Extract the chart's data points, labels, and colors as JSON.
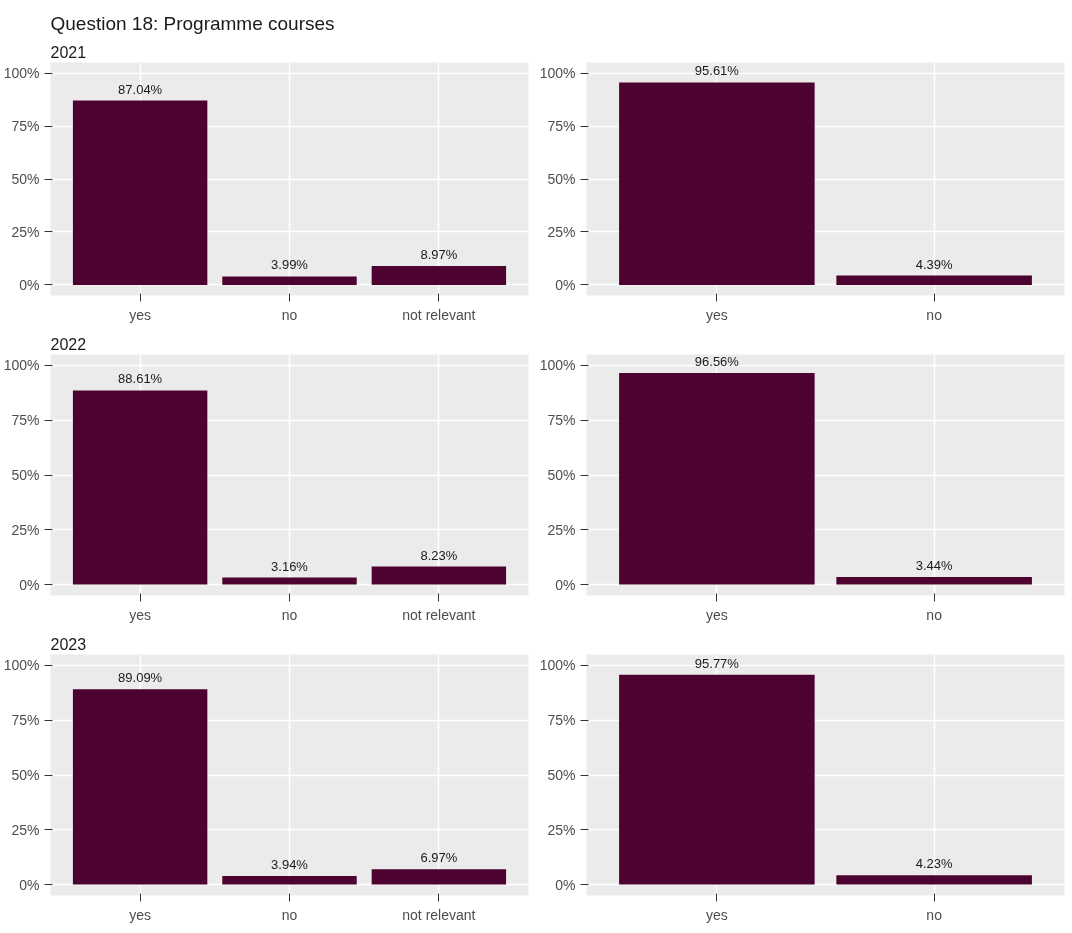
{
  "chart_data": [
    {
      "type": "bar",
      "title": "Question 18: Programme courses",
      "subtitle": "2021",
      "categories": [
        "yes",
        "no",
        "not relevant"
      ],
      "values": [
        87.04,
        3.99,
        8.97
      ],
      "value_labels": [
        "87.04%",
        "3.99%",
        "8.97%"
      ],
      "color": "#4d0330",
      "ylim": [
        -5,
        105
      ],
      "yticks": [
        {
          "value": 0,
          "label": "0%"
        },
        {
          "value": 25,
          "label": "25%"
        },
        {
          "value": 50,
          "label": "50%"
        },
        {
          "value": 75,
          "label": "75%"
        },
        {
          "value": 100,
          "label": "100%"
        }
      ],
      "grid": true
    },
    {
      "type": "bar",
      "categories": [
        "yes",
        "no"
      ],
      "values": [
        95.61,
        4.39
      ],
      "value_labels": [
        "95.61%",
        "4.39%"
      ],
      "color": "#4d0330",
      "ylim": [
        -5,
        105
      ],
      "yticks": [
        {
          "value": 0,
          "label": "0%"
        },
        {
          "value": 25,
          "label": "25%"
        },
        {
          "value": 50,
          "label": "50%"
        },
        {
          "value": 75,
          "label": "75%"
        },
        {
          "value": 100,
          "label": "100%"
        }
      ],
      "grid": true
    },
    {
      "type": "bar",
      "subtitle": "2022",
      "categories": [
        "yes",
        "no",
        "not relevant"
      ],
      "values": [
        88.61,
        3.16,
        8.23
      ],
      "value_labels": [
        "88.61%",
        "3.16%",
        "8.23%"
      ],
      "color": "#4d0330",
      "ylim": [
        -5,
        105
      ],
      "yticks": [
        {
          "value": 0,
          "label": "0%"
        },
        {
          "value": 25,
          "label": "25%"
        },
        {
          "value": 50,
          "label": "50%"
        },
        {
          "value": 75,
          "label": "75%"
        },
        {
          "value": 100,
          "label": "100%"
        }
      ],
      "grid": true
    },
    {
      "type": "bar",
      "categories": [
        "yes",
        "no"
      ],
      "values": [
        96.56,
        3.44
      ],
      "value_labels": [
        "96.56%",
        "3.44%"
      ],
      "color": "#4d0330",
      "ylim": [
        -5,
        105
      ],
      "yticks": [
        {
          "value": 0,
          "label": "0%"
        },
        {
          "value": 25,
          "label": "25%"
        },
        {
          "value": 50,
          "label": "50%"
        },
        {
          "value": 75,
          "label": "75%"
        },
        {
          "value": 100,
          "label": "100%"
        }
      ],
      "grid": true
    },
    {
      "type": "bar",
      "subtitle": "2023",
      "categories": [
        "yes",
        "no",
        "not relevant"
      ],
      "values": [
        89.09,
        3.94,
        6.97
      ],
      "value_labels": [
        "89.09%",
        "3.94%",
        "6.97%"
      ],
      "color": "#4d0330",
      "ylim": [
        -5,
        105
      ],
      "yticks": [
        {
          "value": 0,
          "label": "0%"
        },
        {
          "value": 25,
          "label": "25%"
        },
        {
          "value": 50,
          "label": "50%"
        },
        {
          "value": 75,
          "label": "75%"
        },
        {
          "value": 100,
          "label": "100%"
        }
      ],
      "grid": true
    },
    {
      "type": "bar",
      "categories": [
        "yes",
        "no"
      ],
      "values": [
        95.77,
        4.23
      ],
      "value_labels": [
        "95.77%",
        "4.23%"
      ],
      "color": "#4d0330",
      "ylim": [
        -5,
        105
      ],
      "yticks": [
        {
          "value": 0,
          "label": "0%"
        },
        {
          "value": 25,
          "label": "25%"
        },
        {
          "value": 50,
          "label": "50%"
        },
        {
          "value": 75,
          "label": "75%"
        },
        {
          "value": 100,
          "label": "100%"
        }
      ],
      "grid": true
    }
  ]
}
